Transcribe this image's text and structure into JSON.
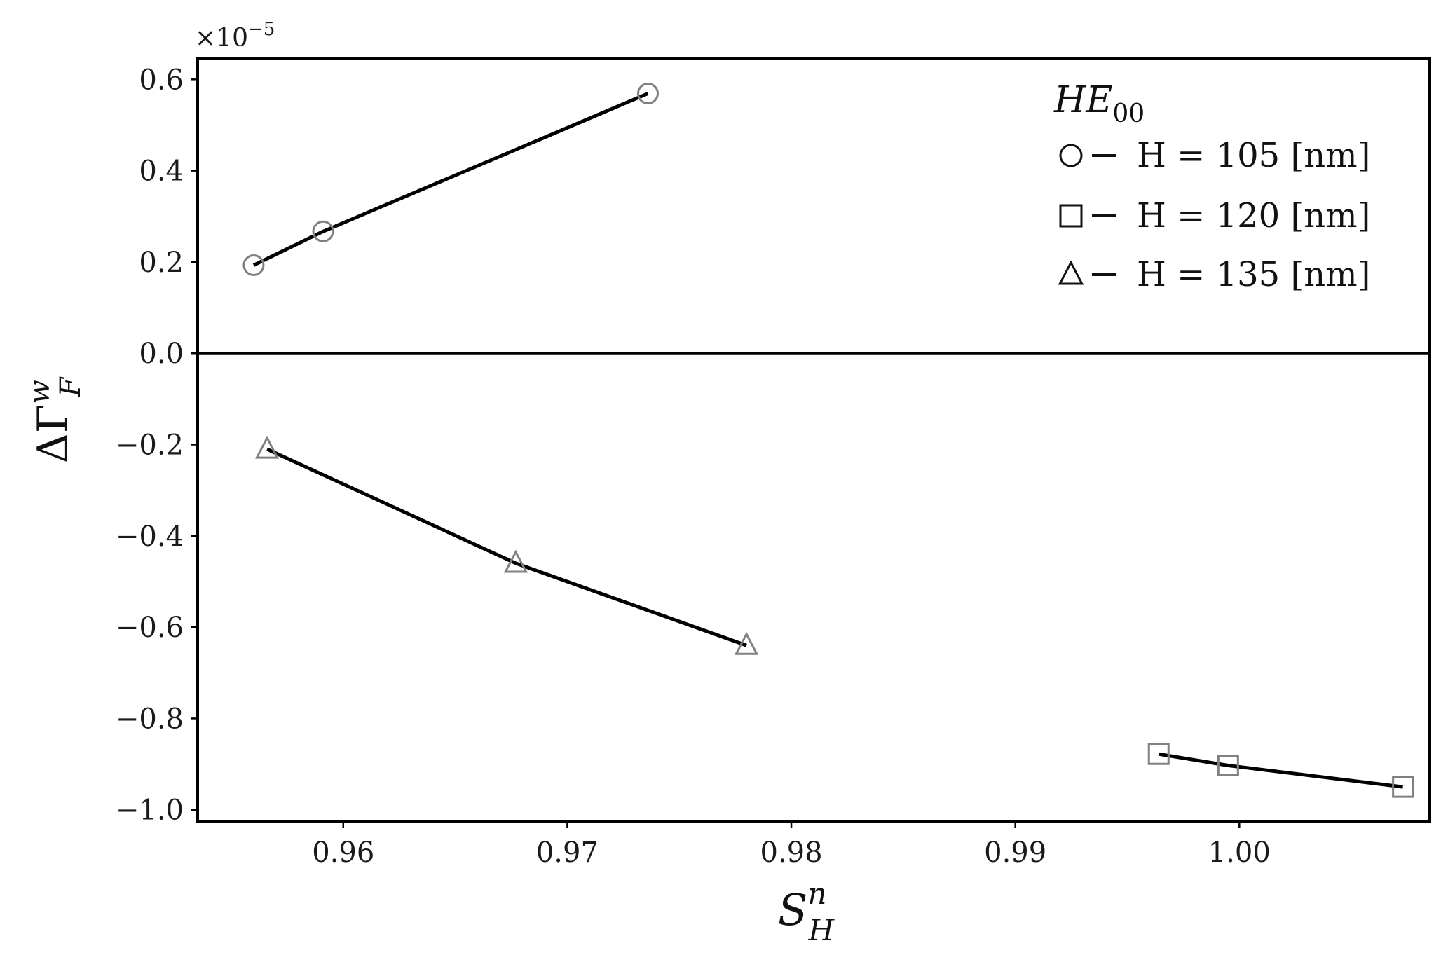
{
  "chart_data": {
    "type": "line",
    "xlabel": "S",
    "xlabel_sup": "n",
    "xlabel_sub": "H",
    "ylabel": "ΔΓ",
    "ylabel_sup": "w",
    "ylabel_sub": "F",
    "y_multiplier": "×10",
    "y_multiplier_exp": "−5",
    "xlim": [
      0.9535,
      1.0085
    ],
    "ylim": [
      -1.025,
      0.645
    ],
    "xticks": [
      0.96,
      0.97,
      0.98,
      0.99,
      1.0
    ],
    "xtick_labels": [
      "0.96",
      "0.97",
      "0.98",
      "0.99",
      "1.00"
    ],
    "yticks": [
      0.6,
      0.4,
      0.2,
      0.0,
      -0.2,
      -0.4,
      -0.6,
      -0.8,
      -1.0
    ],
    "ytick_labels": [
      "0.6",
      "0.4",
      "0.2",
      "0.0",
      "−0.2",
      "−0.4",
      "−0.6",
      "−0.8",
      "−1.0"
    ],
    "hline_y": 0.0,
    "grid": false,
    "legend": {
      "placement": "top-right",
      "title_main": "HE",
      "title_sub": "00"
    },
    "series": [
      {
        "name": "H = 105 [nm]",
        "marker": "circle",
        "x": [
          0.956,
          0.9591,
          0.9736
        ],
        "y": [
          0.193,
          0.267,
          0.569
        ]
      },
      {
        "name": "H = 120 [nm]",
        "marker": "square",
        "x": [
          0.9964,
          0.9995,
          1.0073
        ],
        "y": [
          -0.878,
          -0.903,
          -0.95
        ]
      },
      {
        "name": "H = 135 [nm]",
        "marker": "triangle",
        "x": [
          0.9566,
          0.9677,
          0.978
        ],
        "y": [
          -0.21,
          -0.46,
          -0.64
        ]
      }
    ],
    "colors": {
      "line": "#000000",
      "marker_stroke": "#808080",
      "axes": "#000000"
    }
  }
}
